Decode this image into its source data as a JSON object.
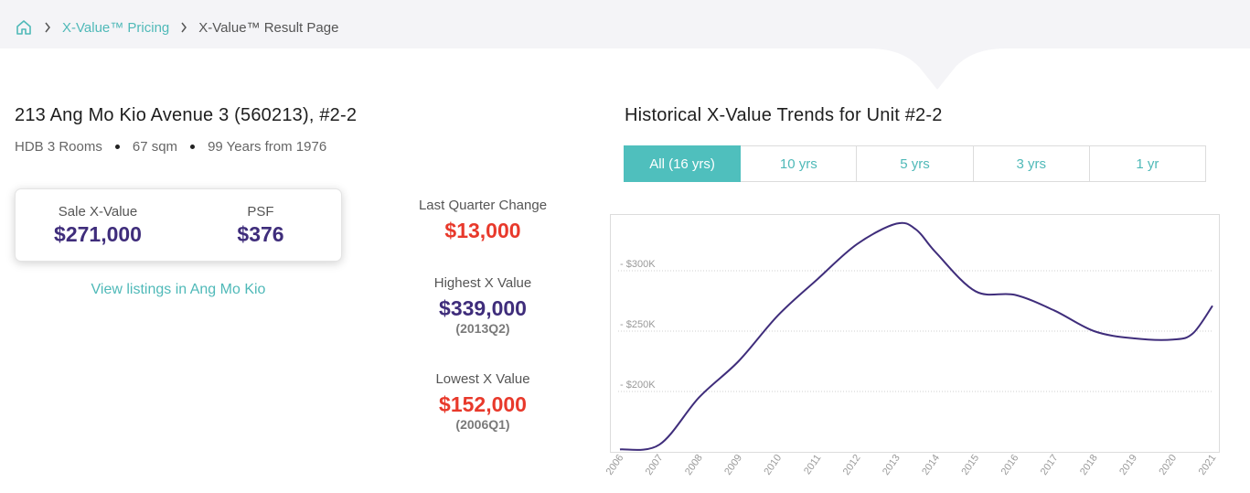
{
  "breadcrumb": {
    "home_icon": "home-icon",
    "items": [
      {
        "label": "X-Value™ Pricing"
      },
      {
        "label": "X-Value™ Result Page"
      }
    ]
  },
  "property": {
    "address": "213 Ang Mo Kio Avenue 3 (560213), #2-2",
    "type": "HDB 3 Rooms",
    "size": "67 sqm",
    "tenure": "99 Years from 1976"
  },
  "value_card": {
    "sale_label": "Sale X-Value",
    "sale_value": "$271,000",
    "psf_label": "PSF",
    "psf_value": "$376"
  },
  "listings_link": "View listings in Ang Mo Kio",
  "stats": {
    "last_quarter_label": "Last Quarter Change",
    "last_quarter_value": "$13,000",
    "highest_label": "Highest X Value",
    "highest_value": "$339,000",
    "highest_period": "(2013Q2)",
    "lowest_label": "Lowest X Value",
    "lowest_value": "$152,000",
    "lowest_period": "(2006Q1)"
  },
  "chart_title": "Historical X-Value Trends for Unit #2-2",
  "tabs": [
    {
      "label": "All (16 yrs)",
      "active": true
    },
    {
      "label": "10 yrs",
      "active": false
    },
    {
      "label": "5 yrs",
      "active": false
    },
    {
      "label": "3 yrs",
      "active": false
    },
    {
      "label": "1 yr",
      "active": false
    }
  ],
  "colors": {
    "accent": "#4fbfbd",
    "line": "#3f2d7b",
    "red": "#e8392b",
    "purple": "#3f2d7b"
  },
  "chart_data": {
    "type": "line",
    "title": "Historical X-Value Trends for Unit #2-2",
    "xlabel": "",
    "ylabel": "",
    "y_tick_labels": [
      "$200K",
      "$250K",
      "$300K"
    ],
    "y_ticks": [
      200000,
      250000,
      300000
    ],
    "x_tick_labels": [
      "2006",
      "2007",
      "2008",
      "2009",
      "2010",
      "2011",
      "2012",
      "2013",
      "2014",
      "2015",
      "2016",
      "2017",
      "2018",
      "2019",
      "2020",
      "2021"
    ],
    "grid": true,
    "series": [
      {
        "values": [
          {
            "x": 2006.0,
            "y": 152000
          },
          {
            "x": 2007.0,
            "y": 156000
          },
          {
            "x": 2008.0,
            "y": 195000
          },
          {
            "x": 2009.0,
            "y": 225000
          },
          {
            "x": 2010.0,
            "y": 263000
          },
          {
            "x": 2011.0,
            "y": 293000
          },
          {
            "x": 2012.0,
            "y": 322000
          },
          {
            "x": 2013.0,
            "y": 339000
          },
          {
            "x": 2013.5,
            "y": 334000
          },
          {
            "x": 2014.0,
            "y": 315000
          },
          {
            "x": 2015.0,
            "y": 283000
          },
          {
            "x": 2016.0,
            "y": 280000
          },
          {
            "x": 2017.0,
            "y": 267000
          },
          {
            "x": 2018.0,
            "y": 250000
          },
          {
            "x": 2019.0,
            "y": 244000
          },
          {
            "x": 2020.0,
            "y": 243000
          },
          {
            "x": 2020.5,
            "y": 248000
          },
          {
            "x": 2021.0,
            "y": 271000
          }
        ]
      }
    ]
  }
}
